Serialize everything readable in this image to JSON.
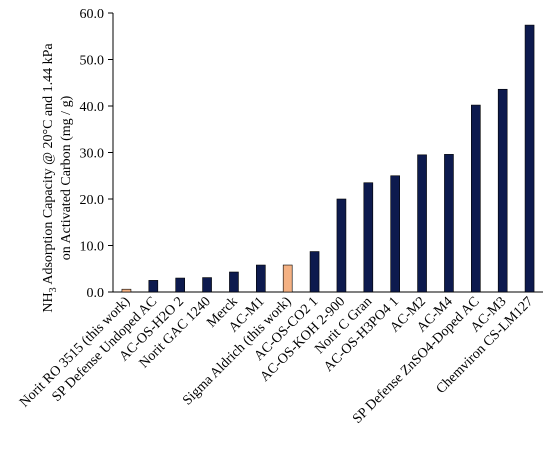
{
  "chart_data": {
    "type": "bar",
    "ylabel_line1_pre": "NH",
    "ylabel_line1_sub": "3",
    "ylabel_line1_post": " Adsorption Capacity @ 20°C and 1.44 kPa",
    "ylabel_line2": "on Activated Carbon  (mg / g)",
    "ylim": [
      0,
      60
    ],
    "yticks": [
      "0.0",
      "10.0",
      "20.0",
      "30.0",
      "40.0",
      "50.0",
      "60.0"
    ],
    "grid": false,
    "legend": "none",
    "colors": {
      "default": "#0d1a4e",
      "highlight": "#f4b183",
      "outline": "#000000"
    },
    "categories": [
      "Norit RO 3515 (this work)",
      "SP Defense Undoped AC",
      "AC-OS-H2O 2",
      "Norit GAC 1240",
      "Merck",
      "AC-M1",
      "Sigma Aldrich (this work)",
      "AC-OS-CO2 1",
      "AC-OS-KOH 2-900",
      "Norit C Gran",
      "AC-OS-H3PO4 1",
      "AC-M2",
      "AC-M4",
      "SP Defense ZnSO4-Doped AC",
      "AC-M3",
      "Chemviron CS-LM127"
    ],
    "values": [
      0.6,
      2.5,
      3.0,
      3.1,
      4.3,
      5.8,
      5.8,
      8.7,
      20.0,
      23.5,
      25.0,
      29.5,
      29.6,
      40.2,
      43.6,
      57.4
    ],
    "highlighted": [
      0,
      6
    ]
  }
}
